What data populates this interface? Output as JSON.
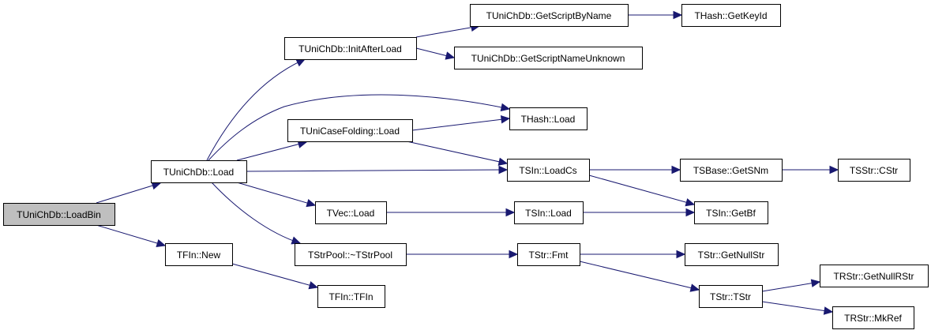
{
  "graph": {
    "type": "call-graph",
    "edge_color": "#191970",
    "root_fill": "#bfbfbf",
    "nodes": [
      {
        "id": "loadbin",
        "label": "TUniChDb::LoadBin",
        "root": true
      },
      {
        "id": "load",
        "label": "TUniChDb::Load"
      },
      {
        "id": "fnew",
        "label": "TFIn::New"
      },
      {
        "id": "initafter",
        "label": "TUniChDb::InitAfterLoad"
      },
      {
        "id": "casefold",
        "label": "TUniCaseFolding::Load"
      },
      {
        "id": "tvecload",
        "label": "TVec::Load"
      },
      {
        "id": "strpool",
        "label": "TStrPool::~TStrPool"
      },
      {
        "id": "tfin",
        "label": "TFIn::TFIn"
      },
      {
        "id": "getscript",
        "label": "TUniChDb::GetScriptByName"
      },
      {
        "id": "getunknown",
        "label": "TUniChDb::GetScriptNameUnknown"
      },
      {
        "id": "hashload",
        "label": "THash::Load"
      },
      {
        "id": "loadcs",
        "label": "TSIn::LoadCs"
      },
      {
        "id": "sinload",
        "label": "TSIn::Load"
      },
      {
        "id": "fmt",
        "label": "TStr::Fmt"
      },
      {
        "id": "getkeyid",
        "label": "THash::GetKeyId"
      },
      {
        "id": "getsnm",
        "label": "TSBase::GetSNm"
      },
      {
        "id": "getbf",
        "label": "TSIn::GetBf"
      },
      {
        "id": "getnullstr",
        "label": "TStr::GetNullStr"
      },
      {
        "id": "tstr",
        "label": "TStr::TStr"
      },
      {
        "id": "cstr",
        "label": "TSStr::CStr"
      },
      {
        "id": "getnullrstr",
        "label": "TRStr::GetNullRStr"
      },
      {
        "id": "mkref",
        "label": "TRStr::MkRef"
      }
    ],
    "edges": [
      {
        "from": "loadbin",
        "to": "load"
      },
      {
        "from": "loadbin",
        "to": "fnew"
      },
      {
        "from": "load",
        "to": "initafter"
      },
      {
        "from": "load",
        "to": "hashload"
      },
      {
        "from": "load",
        "to": "casefold"
      },
      {
        "from": "load",
        "to": "loadcs"
      },
      {
        "from": "load",
        "to": "tvecload"
      },
      {
        "from": "load",
        "to": "strpool"
      },
      {
        "from": "fnew",
        "to": "tfin"
      },
      {
        "from": "initafter",
        "to": "getscript"
      },
      {
        "from": "initafter",
        "to": "getunknown"
      },
      {
        "from": "casefold",
        "to": "hashload"
      },
      {
        "from": "casefold",
        "to": "loadcs"
      },
      {
        "from": "tvecload",
        "to": "sinload"
      },
      {
        "from": "strpool",
        "to": "fmt"
      },
      {
        "from": "getscript",
        "to": "getkeyid"
      },
      {
        "from": "loadcs",
        "to": "getsnm"
      },
      {
        "from": "loadcs",
        "to": "getbf"
      },
      {
        "from": "sinload",
        "to": "getbf"
      },
      {
        "from": "fmt",
        "to": "getnullstr"
      },
      {
        "from": "fmt",
        "to": "tstr"
      },
      {
        "from": "getsnm",
        "to": "cstr"
      },
      {
        "from": "tstr",
        "to": "getnullrstr"
      },
      {
        "from": "tstr",
        "to": "mkref"
      }
    ]
  }
}
